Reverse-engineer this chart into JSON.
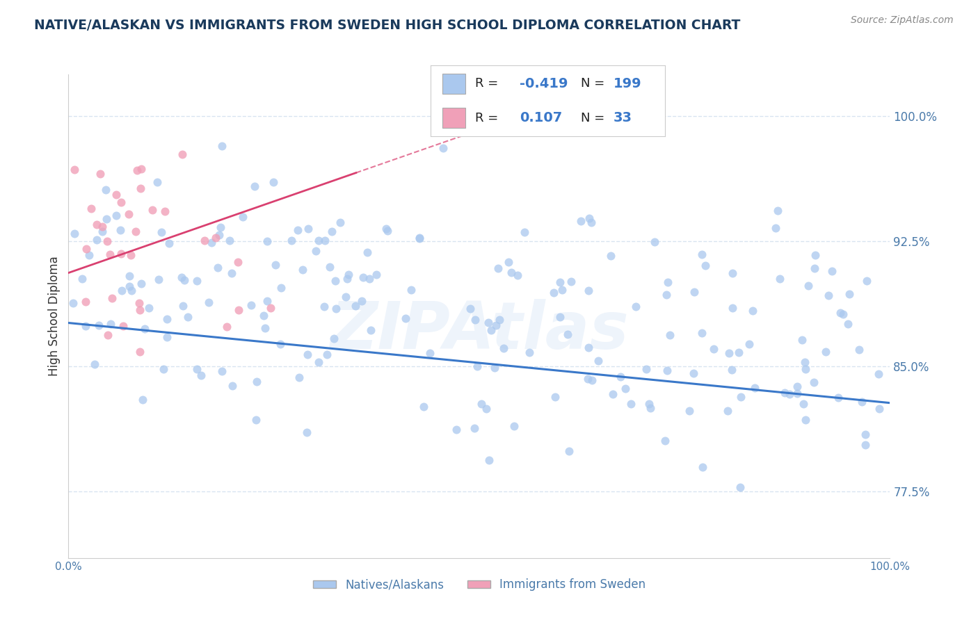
{
  "title": "NATIVE/ALASKAN VS IMMIGRANTS FROM SWEDEN HIGH SCHOOL DIPLOMA CORRELATION CHART",
  "source_text": "Source: ZipAtlas.com",
  "ylabel": "High School Diploma",
  "x_min": 0.0,
  "x_max": 1.0,
  "y_min": 0.735,
  "y_max": 1.025,
  "y_ticks": [
    0.775,
    0.85,
    0.925,
    1.0
  ],
  "y_tick_labels": [
    "77.5%",
    "85.0%",
    "92.5%",
    "100.0%"
  ],
  "x_ticks": [
    0.0,
    0.25,
    0.5,
    0.75,
    1.0
  ],
  "x_tick_labels": [
    "0.0%",
    "",
    "",
    "",
    "100.0%"
  ],
  "blue_R": -0.419,
  "blue_N": 199,
  "pink_R": 0.107,
  "pink_N": 33,
  "blue_color": "#aac8ee",
  "blue_line_color": "#3a78c9",
  "pink_color": "#f0a0b8",
  "pink_line_color": "#d94070",
  "watermark": "ZIPAtlas",
  "legend_blue_label": "Natives/Alaskans",
  "legend_pink_label": "Immigrants from Sweden",
  "background_color": "#ffffff",
  "grid_color": "#d8e4f0",
  "title_color": "#1a3a5c",
  "source_color": "#888888",
  "axis_label_color": "#4a7aaa",
  "r_value_color": "#3a78c9",
  "n_value_color": "#cc0000",
  "legend_R_blue": "-0.419",
  "legend_N_blue": "199",
  "legend_R_pink": "0.107",
  "legend_N_pink": "33",
  "blue_line_start_y": 0.876,
  "blue_line_end_y": 0.828,
  "pink_line_start_y": 0.906,
  "pink_line_end_x": 0.35,
  "pink_line_end_y": 0.966,
  "seed_blue": 42,
  "seed_pink": 123
}
